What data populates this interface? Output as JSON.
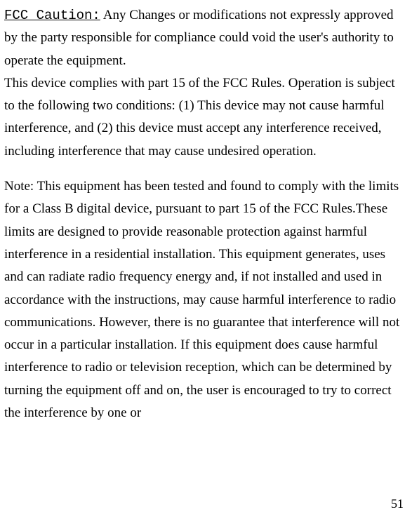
{
  "heading": "FCC Caution:",
  "para1": "Any Changes or modifications not expressly approved by the party responsible for compliance could void the user's authority to operate the equipment.",
  "para2": "This device complies with part 15 of the FCC Rules. Operation is subject to the following two conditions: (1) This device may not cause harmful interference, and (2) this device must accept any interference received, including interference that may cause undesired operation.",
  "para3": "Note: This equipment has been tested and found to comply with the limits for a Class B digital device, pursuant to part 15 of the FCC Rules.These limits are designed to provide reasonable protection against harmful interference in a residential installation. This equipment generates, uses and can radiate radio frequency energy and, if not installed and used in accordance with the instructions, may cause harmful interference to radio communications. However, there is no guarantee that interference will not occur in a particular installation. If this equipment does cause harmful interference to radio or television reception, which can be determined by turning the equipment off and on, the user is encouraged to try to correct the interference by one or",
  "page_number": "51",
  "colors": {
    "text": "#000000",
    "background": "#ffffff"
  },
  "fonts": {
    "heading_family": "Courier New",
    "body_family": "Times New Roman",
    "heading_size_pt": 14,
    "body_size_pt": 14
  }
}
